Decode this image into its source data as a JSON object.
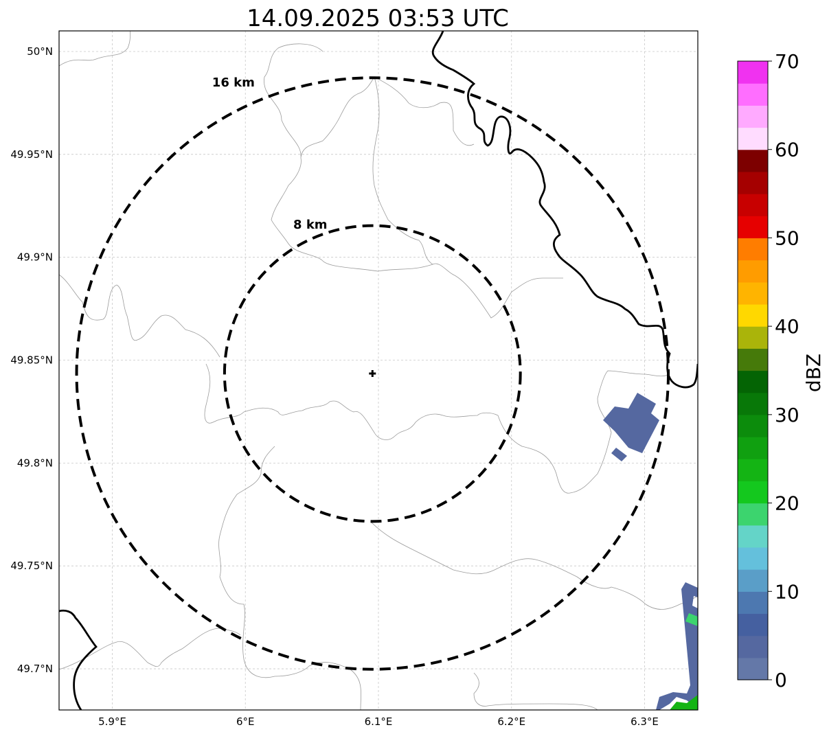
{
  "title": "14.09.2025 03:53 UTC",
  "map": {
    "lon_range": [
      5.86,
      6.34
    ],
    "lat_range": [
      49.68,
      50.01
    ],
    "x_ticks": [
      {
        "value": 5.9,
        "label": "5.9°E"
      },
      {
        "value": 6.0,
        "label": "6°E"
      },
      {
        "value": 6.1,
        "label": "6.1°E"
      },
      {
        "value": 6.2,
        "label": "6.2°E"
      },
      {
        "value": 6.3,
        "label": "6.3°E"
      }
    ],
    "y_ticks": [
      {
        "value": 50.0,
        "label": "50°N"
      },
      {
        "value": 49.95,
        "label": "49.95°N"
      },
      {
        "value": 49.9,
        "label": "49.9°N"
      },
      {
        "value": 49.85,
        "label": "49.85°N"
      },
      {
        "value": 49.8,
        "label": "49.8°N"
      },
      {
        "value": 49.75,
        "label": "49.75°N"
      },
      {
        "value": 49.7,
        "label": "49.7°N"
      }
    ],
    "radar_site": {
      "lon": 6.0955,
      "lat": 49.8435
    },
    "range_rings": [
      {
        "label": "8 km",
        "km": 8
      },
      {
        "label": "16 km",
        "km": 16
      }
    ]
  },
  "colorbar": {
    "label": "dBZ",
    "min": 0,
    "max": 70,
    "step": 2.5,
    "ticks": [
      "0",
      "10",
      "20",
      "30",
      "40",
      "50",
      "60",
      "70"
    ],
    "colors": [
      "#6478a8",
      "#5568a0",
      "#4560a0",
      "#4d78b0",
      "#5a9ec8",
      "#64c0dc",
      "#64d4c8",
      "#3cd46e",
      "#14c81e",
      "#14b414",
      "#10a010",
      "#0c8c0c",
      "#087808",
      "#046404",
      "#467a0a",
      "#aab40a",
      "#ffd800",
      "#ffb400",
      "#ff9c00",
      "#ff7d00",
      "#e60000",
      "#c80000",
      "#a50000",
      "#7d0000",
      "#ffdcff",
      "#ffaaff",
      "#ff6eff",
      "#f032f0"
    ]
  },
  "echoes": [
    {
      "name": "echo-cluster-east",
      "dbz": 3
    },
    {
      "name": "echo-cell-southeast",
      "dbz": 4
    },
    {
      "name": "echo-edge-green",
      "dbz": 18
    }
  ]
}
